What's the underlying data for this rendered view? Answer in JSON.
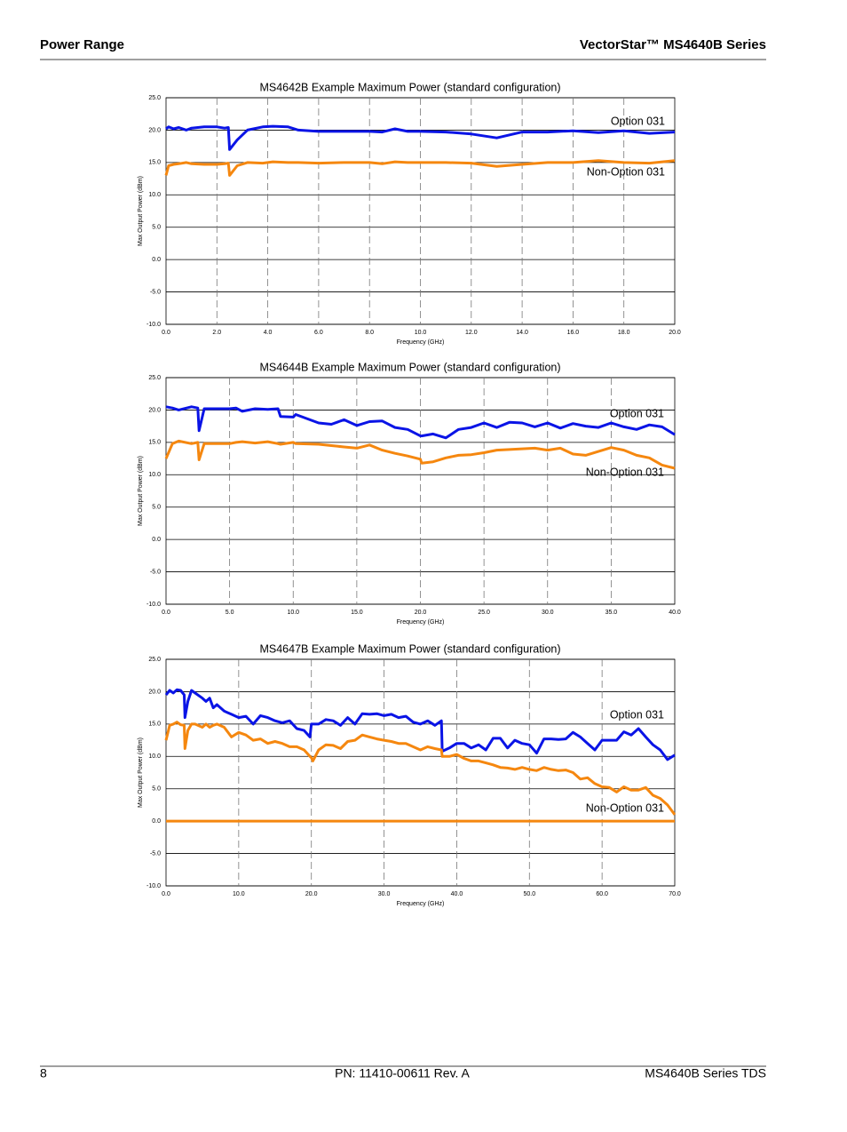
{
  "header": {
    "section": "Power Range",
    "product": "VectorStar™ MS4640B Series"
  },
  "footer": {
    "page": "8",
    "part_number": "PN: 11410-00611  Rev. A",
    "document": "MS4640B Series TDS"
  },
  "chart_data": [
    {
      "type": "line",
      "title": "MS4642B Example Maximum Power (standard configuration)",
      "x_label": "Frequency (GHz)",
      "y_label": "Max Output Power (dBm)",
      "annotations": [
        "Option 031",
        "Non-Option 031"
      ],
      "xlim": [
        0,
        20
      ],
      "ylim": [
        -10,
        25
      ],
      "xticks": [
        {
          "value": 0,
          "label": "0.0"
        },
        {
          "value": 2,
          "label": "2.0"
        },
        {
          "value": 4,
          "label": "4.0"
        },
        {
          "value": 6,
          "label": "6.0"
        },
        {
          "value": 8,
          "label": "8.0"
        },
        {
          "value": 10,
          "label": "10.0"
        },
        {
          "value": 12,
          "label": "12.0"
        },
        {
          "value": 14,
          "label": "14.0"
        },
        {
          "value": 16,
          "label": "16.0"
        },
        {
          "value": 18,
          "label": "18.0"
        },
        {
          "value": 20,
          "label": "20.0"
        }
      ],
      "yticks": [
        {
          "value": -10,
          "label": "-10.0"
        },
        {
          "value": -5,
          "label": "-5.0"
        },
        {
          "value": 0,
          "label": "0.0"
        },
        {
          "value": 5,
          "label": "5.0"
        },
        {
          "value": 10,
          "label": "10.0"
        },
        {
          "value": 15,
          "label": "15.0"
        },
        {
          "value": 20,
          "label": "20.0"
        },
        {
          "value": 25,
          "label": "25.0"
        }
      ],
      "grid": true,
      "x": [
        0,
        0.1,
        0.3,
        0.5,
        0.8,
        1.0,
        1.5,
        2.0,
        2.3,
        2.45,
        2.5,
        2.8,
        3.2,
        3.8,
        4.2,
        4.8,
        5.2,
        6,
        7,
        8,
        8.5,
        9,
        9.5,
        10,
        11,
        12,
        13,
        14,
        15,
        16,
        17,
        18,
        19,
        20
      ],
      "series": [
        {
          "color": "#0a14e6",
          "values": [
            20.2,
            20.5,
            20.2,
            20.4,
            20.0,
            20.3,
            20.5,
            20.5,
            20.3,
            20.4,
            17.0,
            18.5,
            20.0,
            20.5,
            20.6,
            20.5,
            20.0,
            19.8,
            19.8,
            19.8,
            19.7,
            20.2,
            19.8,
            19.8,
            19.7,
            19.4,
            18.8,
            19.7,
            19.7,
            19.9,
            19.6,
            19.9,
            19.5,
            19.7
          ]
        },
        {
          "color": "#f5870f",
          "values": [
            13.0,
            14.5,
            14.7,
            14.8,
            15.0,
            14.8,
            14.7,
            14.7,
            14.8,
            14.9,
            13.0,
            14.5,
            15.0,
            14.9,
            15.1,
            15.0,
            15.0,
            14.9,
            15.0,
            15.0,
            14.8,
            15.1,
            15.0,
            15.0,
            15.0,
            14.9,
            14.4,
            14.7,
            15.0,
            15.0,
            15.3,
            15.0,
            14.9,
            15.3
          ]
        }
      ]
    },
    {
      "type": "line",
      "title": "MS4644B Example Maximum Power (standard configuration)",
      "x_label": "Frequency (GHz)",
      "y_label": "Max Output Power (dBm)",
      "annotations": [
        "Option 031",
        "Non-Option 031"
      ],
      "xlim": [
        0,
        40
      ],
      "ylim": [
        -10,
        25
      ],
      "xticks": [
        {
          "value": 0,
          "label": "0.0"
        },
        {
          "value": 5,
          "label": "5.0"
        },
        {
          "value": 10,
          "label": "10.0"
        },
        {
          "value": 15,
          "label": "15.0"
        },
        {
          "value": 20,
          "label": "20.0"
        },
        {
          "value": 25,
          "label": "25.0"
        },
        {
          "value": 30,
          "label": "30.0"
        },
        {
          "value": 35,
          "label": "35.0"
        },
        {
          "value": 40,
          "label": "40.0"
        }
      ],
      "yticks": [
        {
          "value": -10,
          "label": "-10.0"
        },
        {
          "value": -5,
          "label": "-5.0"
        },
        {
          "value": 0,
          "label": "0.0"
        },
        {
          "value": 5,
          "label": "5.0"
        },
        {
          "value": 10,
          "label": "10.0"
        },
        {
          "value": 15,
          "label": "15.0"
        },
        {
          "value": 20,
          "label": "20.0"
        },
        {
          "value": 25,
          "label": "25.0"
        }
      ],
      "grid": true,
      "x": [
        0,
        0.5,
        1,
        2,
        2.5,
        2.6,
        3,
        5,
        5.5,
        6,
        7,
        8,
        8.8,
        9,
        10,
        10.2,
        12,
        13,
        14,
        15,
        16,
        17,
        18,
        19,
        20,
        20.1,
        21,
        22,
        23,
        24,
        25,
        26,
        27,
        28,
        29,
        30,
        31,
        32,
        33,
        34,
        35,
        36,
        37,
        38,
        39,
        40
      ],
      "series": [
        {
          "color": "#0a14e6",
          "values": [
            20.5,
            20.3,
            20.0,
            20.5,
            20.3,
            16.8,
            20.2,
            20.2,
            20.3,
            19.8,
            20.2,
            20.1,
            20.2,
            19.0,
            18.9,
            19.3,
            18.0,
            17.8,
            18.5,
            17.6,
            18.2,
            18.3,
            17.3,
            17.0,
            16.0,
            16.0,
            16.3,
            15.7,
            17.0,
            17.3,
            18.0,
            17.3,
            18.1,
            18.0,
            17.4,
            18.0,
            17.2,
            17.9,
            17.5,
            17.3,
            18.0,
            17.4,
            17.0,
            17.7,
            17.4,
            16.2
          ]
        },
        {
          "color": "#f5870f",
          "values": [
            12.5,
            14.8,
            15.2,
            14.8,
            15.0,
            12.3,
            14.8,
            14.8,
            15.0,
            15.1,
            14.9,
            15.1,
            14.8,
            14.7,
            15.0,
            14.8,
            14.7,
            14.5,
            14.3,
            14.1,
            14.6,
            13.8,
            13.3,
            12.9,
            12.4,
            11.8,
            12.0,
            12.6,
            13.0,
            13.1,
            13.4,
            13.8,
            13.9,
            14.0,
            14.1,
            13.8,
            14.1,
            13.2,
            13.0,
            13.6,
            14.2,
            13.8,
            13.0,
            12.6,
            11.5,
            11.0
          ]
        }
      ]
    },
    {
      "type": "line",
      "title": "MS4647B Example Maximum Power (standard configuration)",
      "x_label": "Frequency (GHz)",
      "y_label": "Max Output Power (dBm)",
      "annotations": [
        "Option 031",
        "Non-Option 031"
      ],
      "xlim": [
        0,
        70
      ],
      "ylim": [
        -10,
        25
      ],
      "xticks": [
        {
          "value": 0,
          "label": "0.0"
        },
        {
          "value": 10,
          "label": "10.0"
        },
        {
          "value": 20,
          "label": "20.0"
        },
        {
          "value": 30,
          "label": "30.0"
        },
        {
          "value": 40,
          "label": "40.0"
        },
        {
          "value": 50,
          "label": "50.0"
        },
        {
          "value": 60,
          "label": "60.0"
        },
        {
          "value": 70,
          "label": "70.0"
        }
      ],
      "yticks": [
        {
          "value": -10,
          "label": "-10.0"
        },
        {
          "value": -5,
          "label": "-5.0"
        },
        {
          "value": 0,
          "label": "0.0"
        },
        {
          "value": 5,
          "label": "5.0"
        },
        {
          "value": 10,
          "label": "10.0"
        },
        {
          "value": 15,
          "label": "15.0"
        },
        {
          "value": 20,
          "label": "20.0"
        },
        {
          "value": 25,
          "label": "25.0"
        }
      ],
      "grid": true,
      "x": [
        0,
        0.5,
        1,
        1.5,
        2,
        2.5,
        2.6,
        3,
        3.5,
        4,
        5,
        5.5,
        6,
        6.5,
        7,
        8,
        9,
        10,
        11,
        12,
        13,
        14,
        15,
        16,
        17,
        18,
        19,
        19.8,
        20,
        20.2,
        21,
        22,
        23,
        24,
        25,
        26,
        27,
        28,
        29,
        30,
        31,
        32,
        33,
        34,
        35,
        36,
        37,
        37.9,
        38,
        39,
        40,
        41,
        42,
        43,
        44,
        45,
        46,
        47,
        48,
        49,
        50,
        51,
        52,
        53,
        54,
        55,
        56,
        57,
        58,
        59,
        60,
        61,
        62,
        63,
        64,
        65,
        66,
        67,
        68,
        69,
        70
      ],
      "series": [
        {
          "color": "#0a14e6",
          "values": [
            19.5,
            20.2,
            19.8,
            20.3,
            20.2,
            19.5,
            16.0,
            18.5,
            20.2,
            19.8,
            19.0,
            18.5,
            19.0,
            17.5,
            18.0,
            17.0,
            16.5,
            16.0,
            16.2,
            15.0,
            16.3,
            16.0,
            15.5,
            15.2,
            15.5,
            14.3,
            14.0,
            13.0,
            15.0,
            15.0,
            15.0,
            15.7,
            15.5,
            14.8,
            16.0,
            15.0,
            16.6,
            16.5,
            16.6,
            16.3,
            16.5,
            16.0,
            16.2,
            15.3,
            15.0,
            15.5,
            14.8,
            15.5,
            10.8,
            11.3,
            12.0,
            12.0,
            11.3,
            11.8,
            11.0,
            12.8,
            12.8,
            11.3,
            12.5,
            12.0,
            11.8,
            10.5,
            12.7,
            12.7,
            12.6,
            12.7,
            13.7,
            13.0,
            12.0,
            11.0,
            12.5,
            12.5,
            12.5,
            13.8,
            13.3,
            14.3,
            13.0,
            11.8,
            11.0,
            9.5,
            10.2
          ]
        },
        {
          "color": "#f5870f",
          "values": [
            12.5,
            14.8,
            15.0,
            15.3,
            14.9,
            14.8,
            11.2,
            14.0,
            15.0,
            15.0,
            14.5,
            15.0,
            14.5,
            14.8,
            15.0,
            14.5,
            13.0,
            13.7,
            13.3,
            12.5,
            12.7,
            12.0,
            12.3,
            12.0,
            11.5,
            11.5,
            11.0,
            10.0,
            9.8,
            9.3,
            11.0,
            11.8,
            11.7,
            11.2,
            12.3,
            12.5,
            13.3,
            13.0,
            12.7,
            12.5,
            12.3,
            12.0,
            12.0,
            11.5,
            11.0,
            11.5,
            11.2,
            11.0,
            10.0,
            10.0,
            10.3,
            9.7,
            9.3,
            9.3,
            9.0,
            8.7,
            8.3,
            8.2,
            8.0,
            8.3,
            8.0,
            7.8,
            8.3,
            8.0,
            7.8,
            7.9,
            7.5,
            6.5,
            6.7,
            5.8,
            5.3,
            5.2,
            4.5,
            5.3,
            4.8,
            4.8,
            5.2,
            4.0,
            3.5,
            2.5,
            1.0
          ]
        },
        {
          "color": "#f5870f",
          "values": [
            0,
            0,
            0,
            0,
            0,
            0,
            0,
            0,
            0,
            0,
            0,
            0,
            0,
            0,
            0,
            0,
            0,
            0,
            0,
            0,
            0,
            0,
            0,
            0,
            0,
            0,
            0,
            0,
            0,
            0,
            0,
            0,
            0,
            0,
            0,
            0,
            0,
            0,
            0,
            0,
            0,
            0,
            0,
            0,
            0,
            0,
            0,
            0,
            0,
            0,
            0,
            0,
            0,
            0,
            0,
            0,
            0,
            0,
            0,
            0,
            0,
            0,
            0,
            0,
            0,
            0,
            0,
            0,
            0,
            0,
            0,
            0,
            0,
            0,
            0,
            0,
            0,
            0,
            0,
            0,
            0
          ]
        }
      ]
    }
  ]
}
